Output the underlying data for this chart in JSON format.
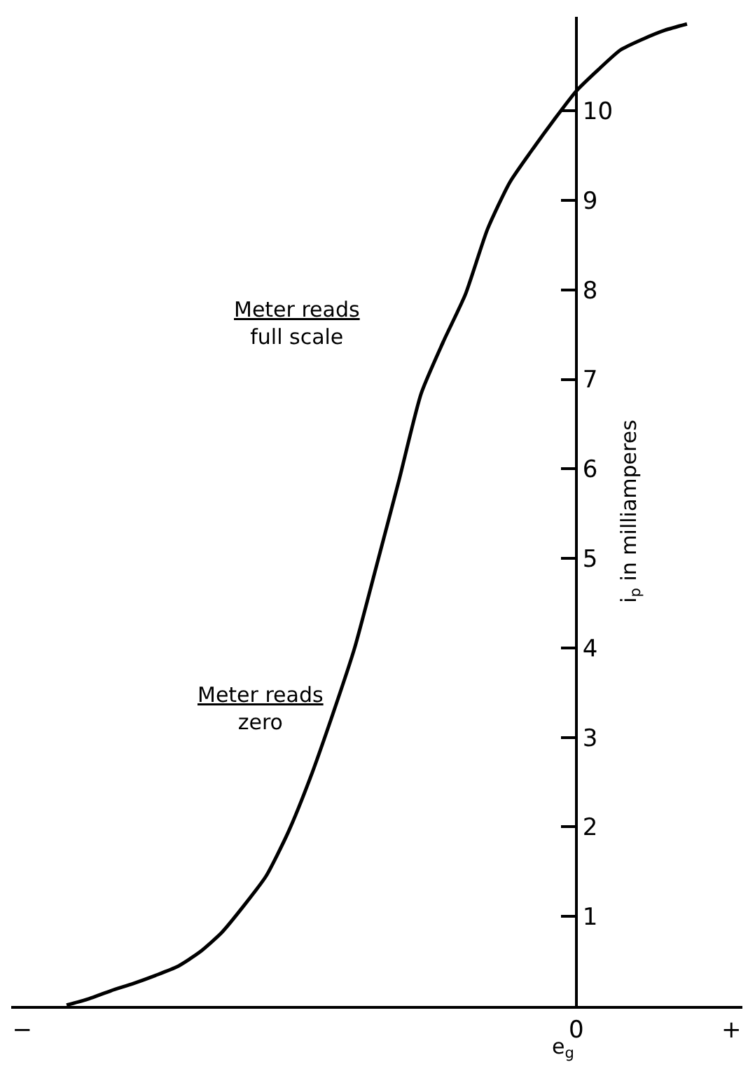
{
  "chart_data": {
    "type": "line",
    "xlabel": "e$_{g}$",
    "ylabel": "i$_{p}$ in milliamperes",
    "categories": [
      "−",
      null,
      null,
      null,
      null,
      null,
      null,
      null,
      null,
      null,
      null,
      null,
      null,
      null,
      null,
      null,
      null,
      null,
      null,
      null,
      null,
      null,
      null,
      null,
      null,
      "0",
      null,
      null,
      null,
      null,
      null,
      null,
      "+"
    ],
    "series": [
      {
        "color": "#000000",
        "values": [
          null,
          null,
          0.01,
          0.08,
          0.17,
          0.25,
          0.34,
          0.44,
          0.6,
          0.82,
          1.12,
          1.45,
          1.94,
          2.55,
          3.25,
          4.0,
          4.93,
          5.87,
          6.84,
          7.42,
          7.95,
          8.68,
          9.2,
          9.56,
          9.9,
          10.22,
          10.46,
          10.68,
          10.8,
          10.9,
          10.97,
          null,
          null
        ]
      }
    ],
    "ylim": [
      0,
      11.05
    ],
    "yticks": [
      1,
      2,
      3,
      4,
      5,
      6,
      7,
      8,
      9,
      10
    ],
    "annotations": [
      "Meter reads\nfull scale",
      "Meter reads\nzero"
    ],
    "grid": false,
    "marker": "none",
    "line_style": "solid"
  }
}
